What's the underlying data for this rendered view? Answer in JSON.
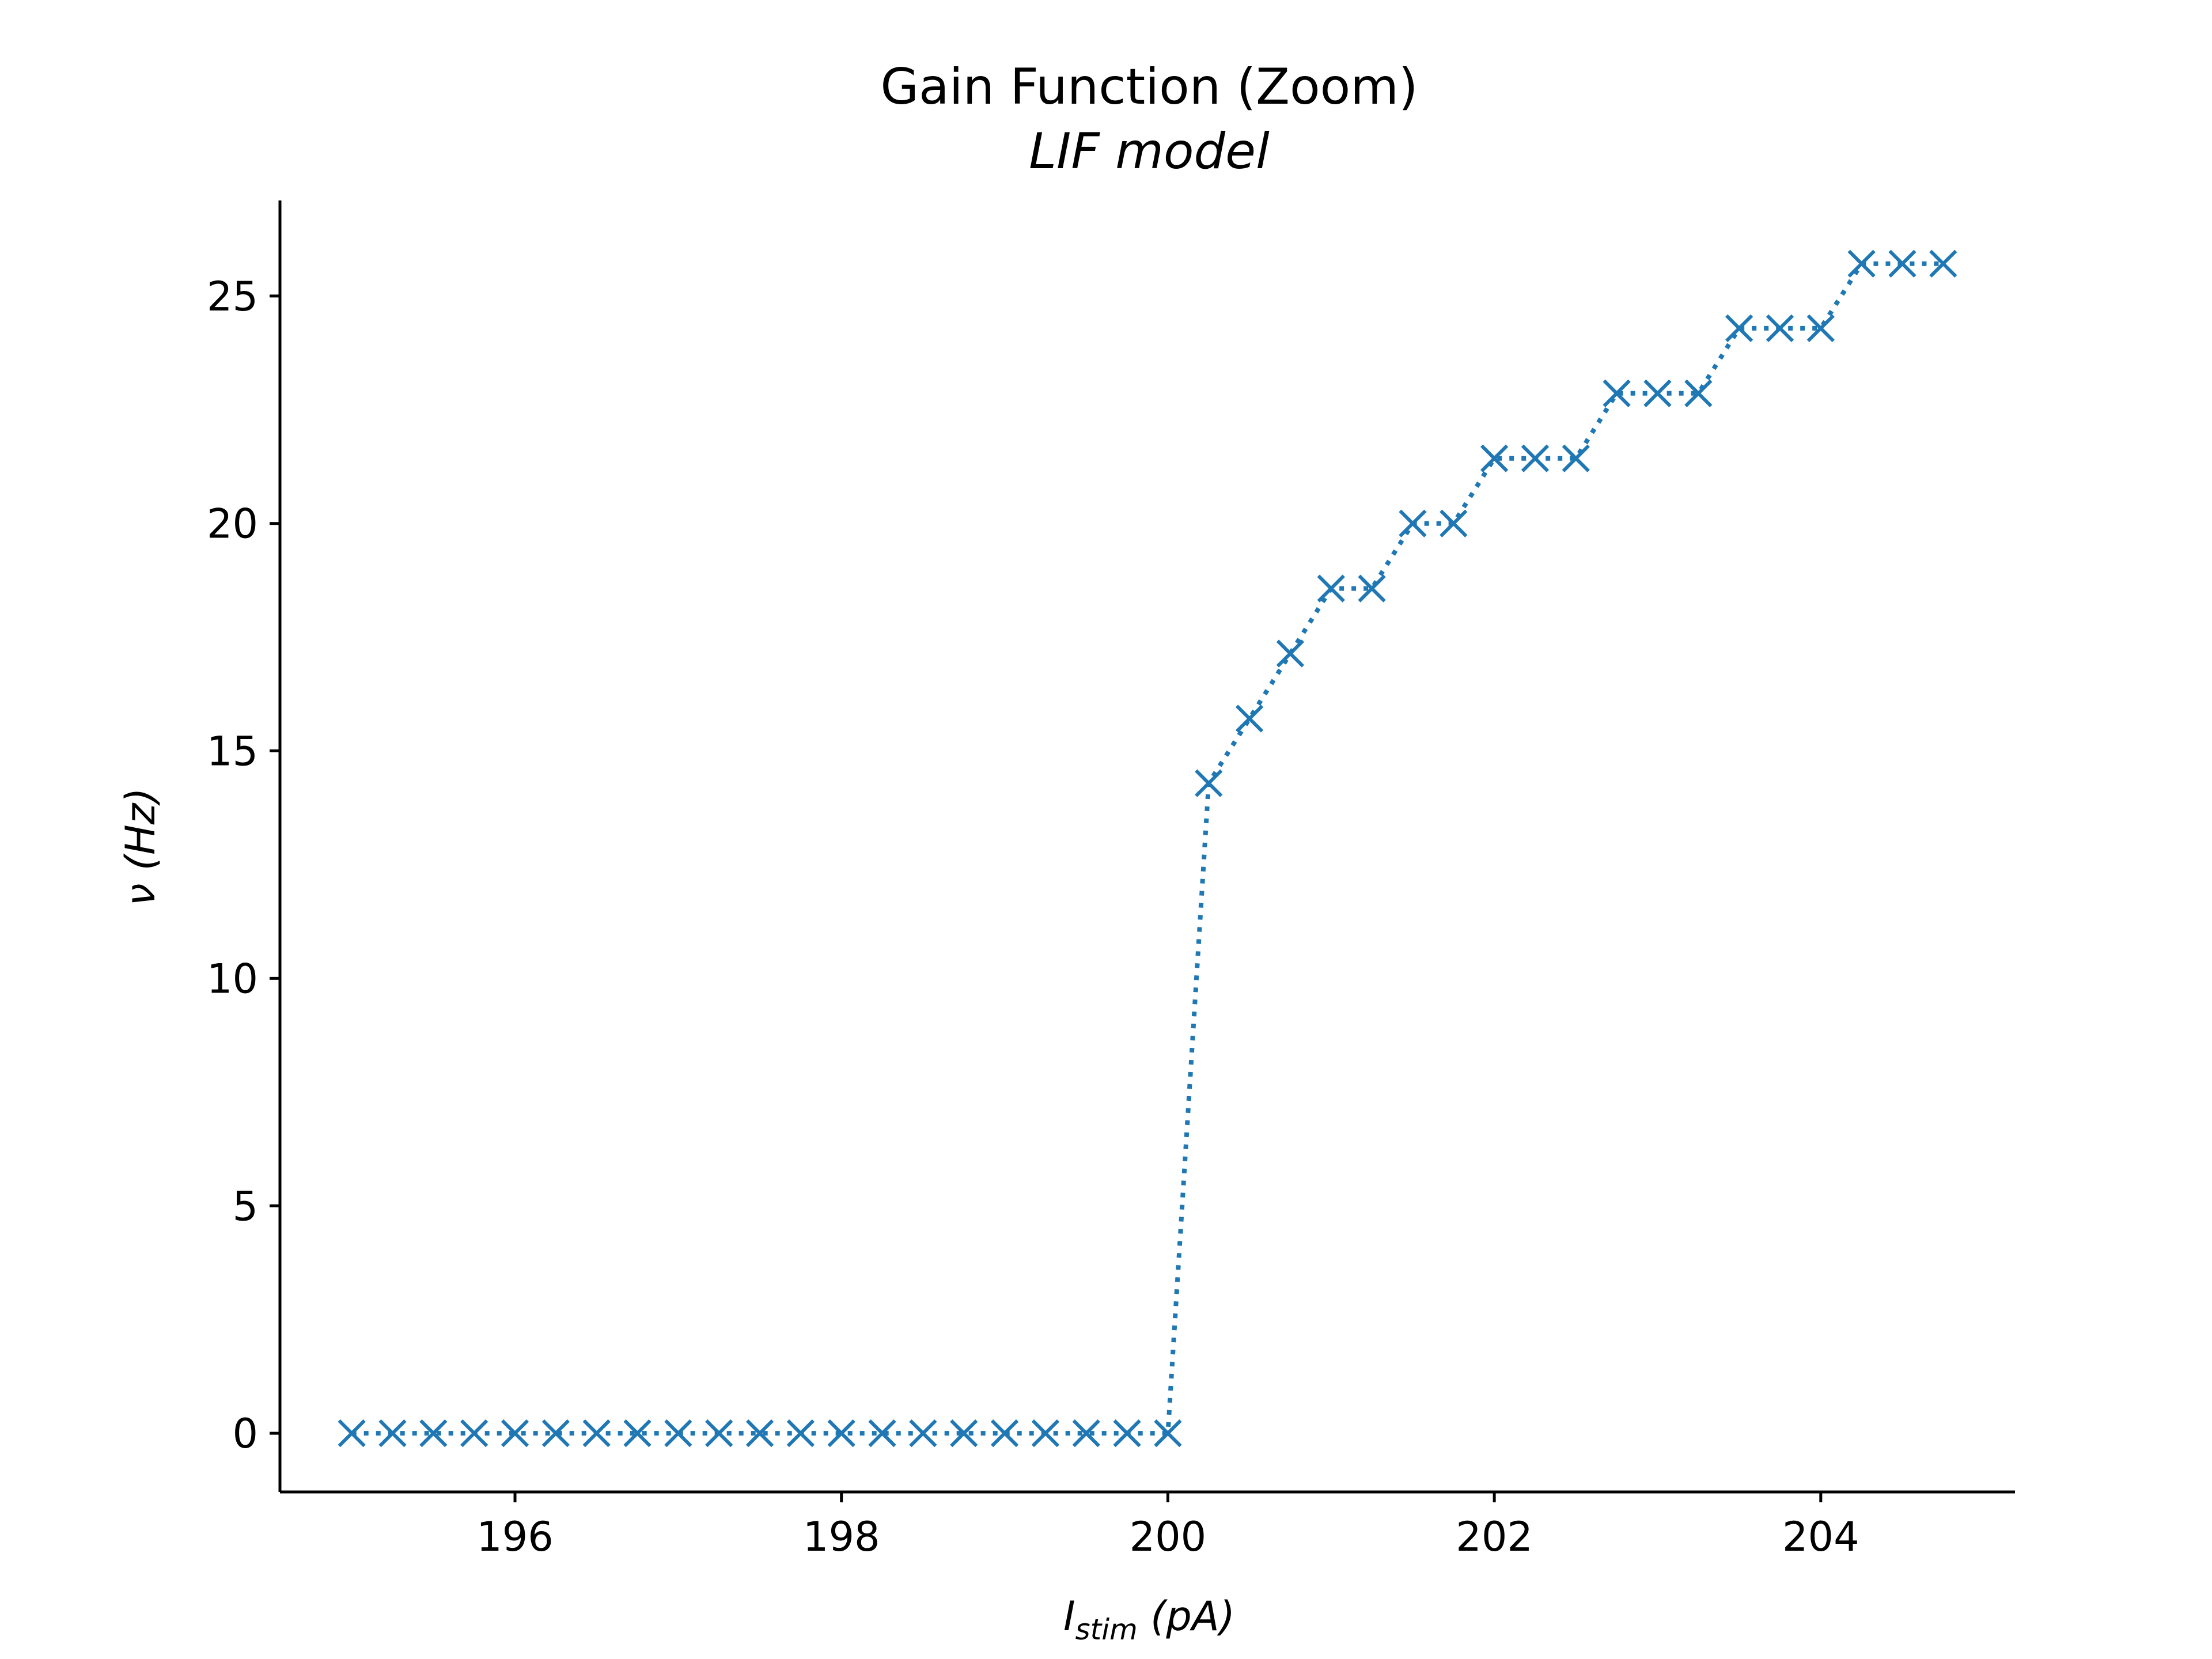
{
  "chart_data": {
    "type": "line",
    "title": "Gain Function (Zoom)",
    "subtitle": "LIF model",
    "xlabel": {
      "base": "I",
      "subscript": "stim",
      "suffix": " (pA)"
    },
    "ylabel": "ν (Hz)",
    "xlim": [
      194.56,
      205.19
    ],
    "ylim": [
      -1.29,
      27.1
    ],
    "x_ticks": [
      196,
      198,
      200,
      202,
      204
    ],
    "y_ticks": [
      0,
      5,
      10,
      15,
      20,
      25
    ],
    "grid": false,
    "series": [
      {
        "name": "LIF gain",
        "color": "#1f77b4",
        "line_style": "dotted",
        "marker": "x",
        "x": [
          195.0,
          195.25,
          195.5,
          195.75,
          196.0,
          196.25,
          196.5,
          196.75,
          197.0,
          197.25,
          197.5,
          197.75,
          198.0,
          198.25,
          198.5,
          198.75,
          199.0,
          199.25,
          199.5,
          199.75,
          200.0,
          200.25,
          200.5,
          200.75,
          201.0,
          201.25,
          201.5,
          201.75,
          202.0,
          202.25,
          202.5,
          202.75,
          203.0,
          203.25,
          203.5,
          203.75,
          204.0,
          204.25,
          204.5,
          204.75
        ],
        "y": [
          0,
          0,
          0,
          0,
          0,
          0,
          0,
          0,
          0,
          0,
          0,
          0,
          0,
          0,
          0,
          0,
          0,
          0,
          0,
          0,
          0,
          14.29,
          15.71,
          17.14,
          18.57,
          18.57,
          20.0,
          20.0,
          21.43,
          21.43,
          21.43,
          22.86,
          22.86,
          22.86,
          24.29,
          24.29,
          24.29,
          25.71,
          25.71,
          25.71
        ]
      }
    ]
  }
}
